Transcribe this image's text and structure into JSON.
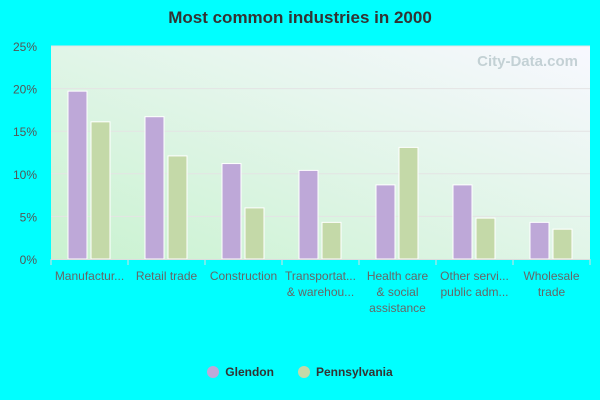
{
  "chart_data": {
    "type": "bar",
    "title": "Most common industries in 2000",
    "categories": [
      [
        "Manufactur..."
      ],
      [
        "Retail trade"
      ],
      [
        "Construction"
      ],
      [
        "Transportat...",
        "& warehou..."
      ],
      [
        "Health care",
        "& social",
        "assistance"
      ],
      [
        "Other servi...",
        "public adm..."
      ],
      [
        "Wholesale",
        "trade"
      ]
    ],
    "series": [
      {
        "name": "Glendon",
        "color": "#bea8d8",
        "values": [
          19.7,
          16.7,
          11.2,
          10.4,
          8.7,
          8.7,
          4.3
        ]
      },
      {
        "name": "Pennsylvania",
        "color": "#c4d9a8",
        "values": [
          16.1,
          12.1,
          6.0,
          4.3,
          13.1,
          4.8,
          3.5
        ]
      }
    ],
    "ylim": [
      0,
      25
    ],
    "yticks": [
      "0%",
      "5%",
      "10%",
      "15%",
      "20%",
      "25%"
    ],
    "ytick_values": [
      0,
      5,
      10,
      15,
      20,
      25
    ],
    "grid": true,
    "legend_position": "bottom",
    "watermark": "City-Data.com"
  }
}
